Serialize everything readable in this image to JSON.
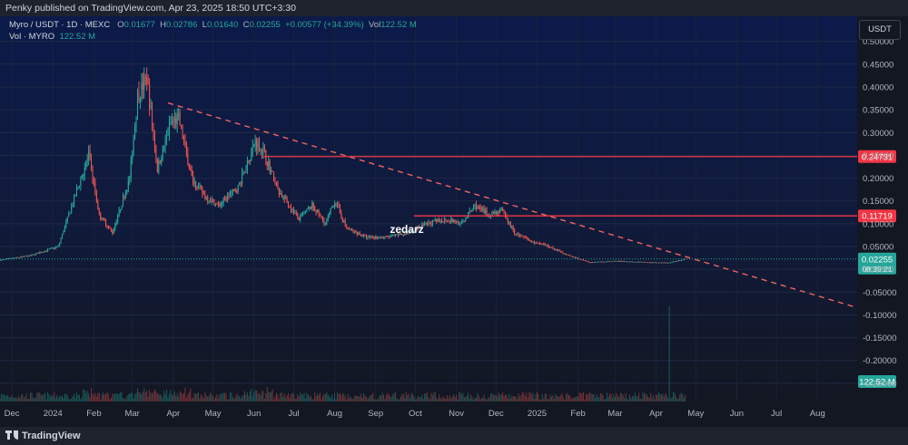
{
  "header": {
    "publisher_text": "Penky published on TradingView.com, Apr 23, 2025 18:50 UTC+3:30"
  },
  "legend": {
    "symbol": "Myro / USDT · 1D · MEXC",
    "open_label": "O",
    "open": "0.01677",
    "high_label": "H",
    "high": "0.02786",
    "low_label": "L",
    "low": "0.01640",
    "close_label": "C",
    "close": "0.02255",
    "change": "+0.00577 (+34.39%)",
    "vol_label": "Vol",
    "vol": "122.52 M",
    "vol_series_label": "Vol · MYRO",
    "vol_series_value": "122.52 M"
  },
  "price_axis": {
    "unit": "USDT"
  },
  "footer": {
    "brand": "TradingView"
  },
  "watermark": "zedarz",
  "colors": {
    "background_top": "#0b1a4a",
    "background_bottom": "#131722",
    "up": "#26a69a",
    "down": "#ef5350",
    "level_line": "#f23645",
    "trend_line": "#f06464",
    "text": "#d1d4dc",
    "axis_text": "#b2b5be"
  },
  "chart_data": {
    "type": "candlestick",
    "title": "",
    "symbol": "Myro / USDT",
    "interval": "1D",
    "exchange": "MEXC",
    "ylim": [
      -0.29,
      0.555
    ],
    "y_ticks": [
      0.5,
      0.45,
      0.4,
      0.35,
      0.3,
      0.25,
      0.2,
      0.15,
      0.1,
      0.05,
      0.0,
      -0.05,
      -0.1,
      -0.15,
      -0.2,
      -0.25
    ],
    "y_tick_labels": [
      "0.50000",
      "0.45000",
      "0.40000",
      "0.35000",
      "0.30000",
      "0.25000",
      "0.20000",
      "0.15000",
      "0.10000",
      "0.05000",
      "0.00000",
      "-0.05000",
      "-0.10000",
      "-0.15000",
      "-0.20000",
      "-0.25000"
    ],
    "x_ticks": [
      "2023-12-01",
      "2024-01-01",
      "2024-02-01",
      "2024-03-01",
      "2024-04-01",
      "2024-05-01",
      "2024-06-01",
      "2024-07-01",
      "2024-08-01",
      "2024-09-01",
      "2024-10-01",
      "2024-11-01",
      "2024-12-01",
      "2025-01-01",
      "2025-02-01",
      "2025-03-01",
      "2025-04-01",
      "2025-05-01",
      "2025-06-01",
      "2025-07-01",
      "2025-08-01"
    ],
    "x_tick_labels": [
      "Dec",
      "2024",
      "Feb",
      "Mar",
      "Apr",
      "May",
      "Jun",
      "Jul",
      "Aug",
      "Sep",
      "Oct",
      "Nov",
      "Dec",
      "2025",
      "Feb",
      "Mar",
      "Apr",
      "May",
      "Jun",
      "Jul",
      "Aug"
    ],
    "x_range": [
      "2023-11-22",
      "2025-08-31"
    ],
    "price_path": [
      {
        "date": "2023-11-22",
        "price": 0.02
      },
      {
        "date": "2023-12-15",
        "price": 0.03
      },
      {
        "date": "2024-01-05",
        "price": 0.05
      },
      {
        "date": "2024-01-20",
        "price": 0.18
      },
      {
        "date": "2024-01-28",
        "price": 0.25
      },
      {
        "date": "2024-02-05",
        "price": 0.12
      },
      {
        "date": "2024-02-15",
        "price": 0.08
      },
      {
        "date": "2024-02-28",
        "price": 0.2
      },
      {
        "date": "2024-03-05",
        "price": 0.38
      },
      {
        "date": "2024-03-12",
        "price": 0.42
      },
      {
        "date": "2024-03-20",
        "price": 0.22
      },
      {
        "date": "2024-03-30",
        "price": 0.32
      },
      {
        "date": "2024-04-05",
        "price": 0.33
      },
      {
        "date": "2024-04-15",
        "price": 0.2
      },
      {
        "date": "2024-04-25",
        "price": 0.16
      },
      {
        "date": "2024-05-05",
        "price": 0.14
      },
      {
        "date": "2024-05-20",
        "price": 0.18
      },
      {
        "date": "2024-06-02",
        "price": 0.28
      },
      {
        "date": "2024-06-08",
        "price": 0.26
      },
      {
        "date": "2024-06-20",
        "price": 0.17
      },
      {
        "date": "2024-07-05",
        "price": 0.11
      },
      {
        "date": "2024-07-15",
        "price": 0.14
      },
      {
        "date": "2024-07-25",
        "price": 0.1
      },
      {
        "date": "2024-08-01",
        "price": 0.15
      },
      {
        "date": "2024-08-10",
        "price": 0.09
      },
      {
        "date": "2024-08-25",
        "price": 0.07
      },
      {
        "date": "2024-09-10",
        "price": 0.07
      },
      {
        "date": "2024-09-25",
        "price": 0.08
      },
      {
        "date": "2024-10-10",
        "price": 0.1
      },
      {
        "date": "2024-10-25",
        "price": 0.11
      },
      {
        "date": "2024-11-05",
        "price": 0.1
      },
      {
        "date": "2024-11-15",
        "price": 0.14
      },
      {
        "date": "2024-11-25",
        "price": 0.12
      },
      {
        "date": "2024-12-05",
        "price": 0.13
      },
      {
        "date": "2024-12-15",
        "price": 0.08
      },
      {
        "date": "2024-12-28",
        "price": 0.06
      },
      {
        "date": "2025-01-10",
        "price": 0.05
      },
      {
        "date": "2025-01-25",
        "price": 0.03
      },
      {
        "date": "2025-02-10",
        "price": 0.015
      },
      {
        "date": "2025-03-01",
        "price": 0.018
      },
      {
        "date": "2025-03-20",
        "price": 0.016
      },
      {
        "date": "2025-04-10",
        "price": 0.014
      },
      {
        "date": "2025-04-23",
        "price": 0.02255
      }
    ],
    "volume_spike": {
      "date": "2025-04-11",
      "value_ratio": 1.0
    },
    "levels": [
      {
        "price": 0.24731,
        "label": "0.24731",
        "from": "2024-06-08"
      },
      {
        "price": 0.11719,
        "label": "0.11719",
        "from": "2024-09-30"
      }
    ],
    "trendline": {
      "start": {
        "date": "2024-03-28",
        "price": 0.365
      },
      "through": {
        "date": "2025-04-23",
        "price": 0.028
      }
    },
    "current_price": {
      "value": 0.02255,
      "label": "0.02255",
      "countdown": "08:39:21"
    },
    "volume_label": "122.52 M"
  }
}
